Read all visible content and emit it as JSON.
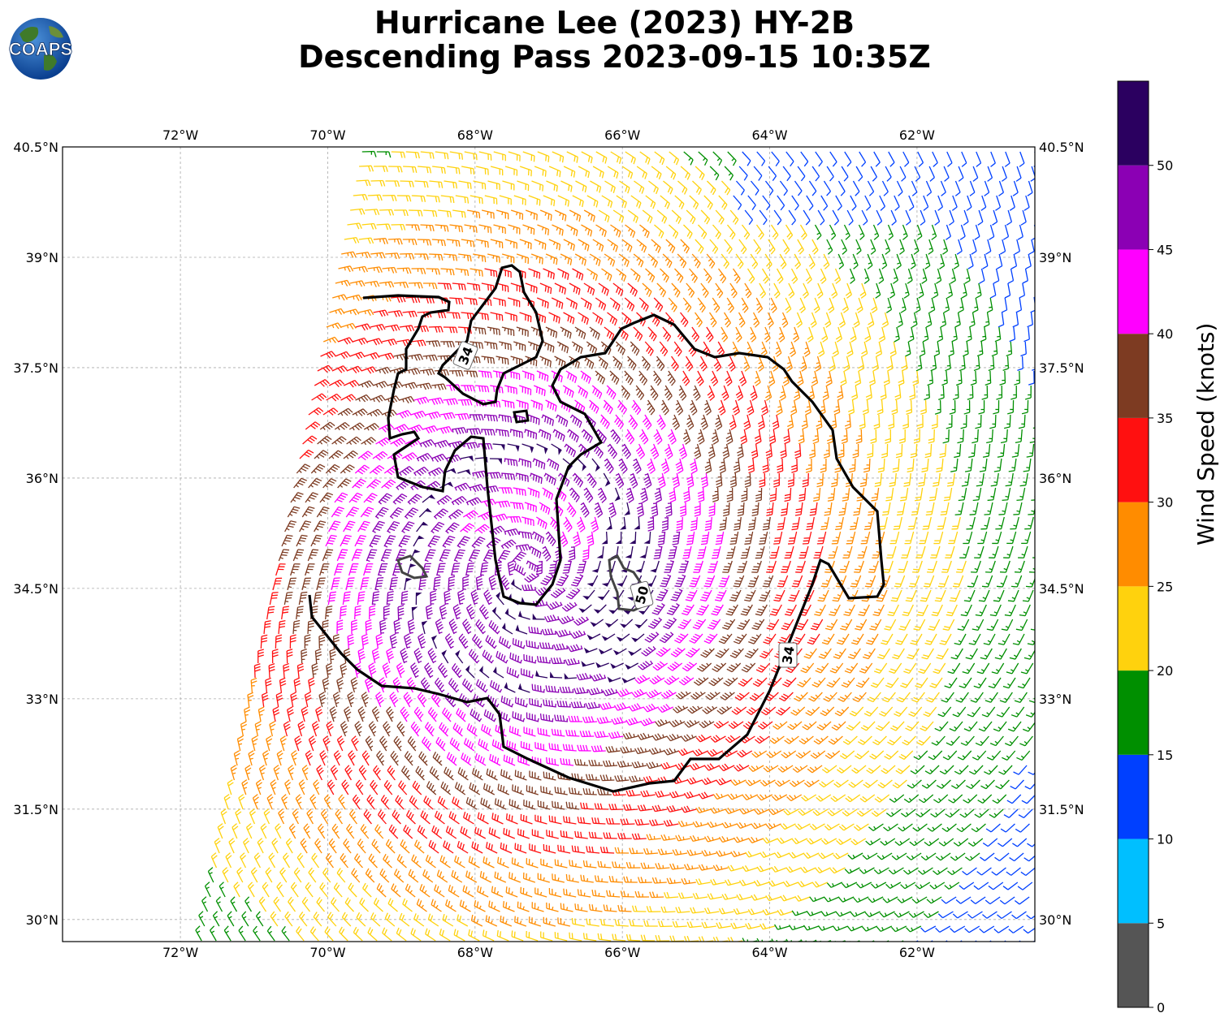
{
  "title": {
    "line1": "Hurricane Lee (2023) HY-2B",
    "line2": "Descending Pass 2023-09-15 10:35Z"
  },
  "logo": {
    "text": "COAPS",
    "icon": "globe-logo-icon"
  },
  "axes": {
    "lon_ticks": [
      "72°W",
      "70°W",
      "68°W",
      "66°W",
      "64°W",
      "62°W"
    ],
    "lat_ticks": [
      "40.5°N",
      "39°N",
      "37.5°N",
      "36°N",
      "34.5°N",
      "33°N",
      "31.5°N",
      "30°N"
    ],
    "lon_range": [
      -73.6,
      -60.4
    ],
    "lat_range": [
      29.7,
      40.5
    ],
    "grid": true
  },
  "contours": [
    {
      "label": "34",
      "value": 34,
      "color": "#000000"
    },
    {
      "label": "34",
      "value": 34,
      "color": "#000000"
    },
    {
      "label": "50",
      "value": 50,
      "color": "#444444"
    }
  ],
  "colorbar": {
    "label": "Wind Speed (knots)",
    "tick_labels": [
      "0",
      "5",
      "10",
      "15",
      "20",
      "25",
      "30",
      "35",
      "40",
      "45",
      "50"
    ],
    "bins": [
      {
        "min": 0,
        "max": 5,
        "color": "#555555"
      },
      {
        "min": 5,
        "max": 10,
        "color": "#00bfff"
      },
      {
        "min": 10,
        "max": 15,
        "color": "#0040ff"
      },
      {
        "min": 15,
        "max": 20,
        "color": "#008f00"
      },
      {
        "min": 20,
        "max": 25,
        "color": "#ffd20d"
      },
      {
        "min": 25,
        "max": 30,
        "color": "#ff8c00"
      },
      {
        "min": 30,
        "max": 35,
        "color": "#ff1010"
      },
      {
        "min": 35,
        "max": 40,
        "color": "#7d3b22"
      },
      {
        "min": 40,
        "max": 45,
        "color": "#ff00ff"
      },
      {
        "min": 45,
        "max": 50,
        "color": "#8b00b4"
      },
      {
        "min": 50,
        "max": 55,
        "color": "#2b0060"
      }
    ]
  },
  "storm": {
    "center_lon": -67.3,
    "center_lat": 34.8
  }
}
